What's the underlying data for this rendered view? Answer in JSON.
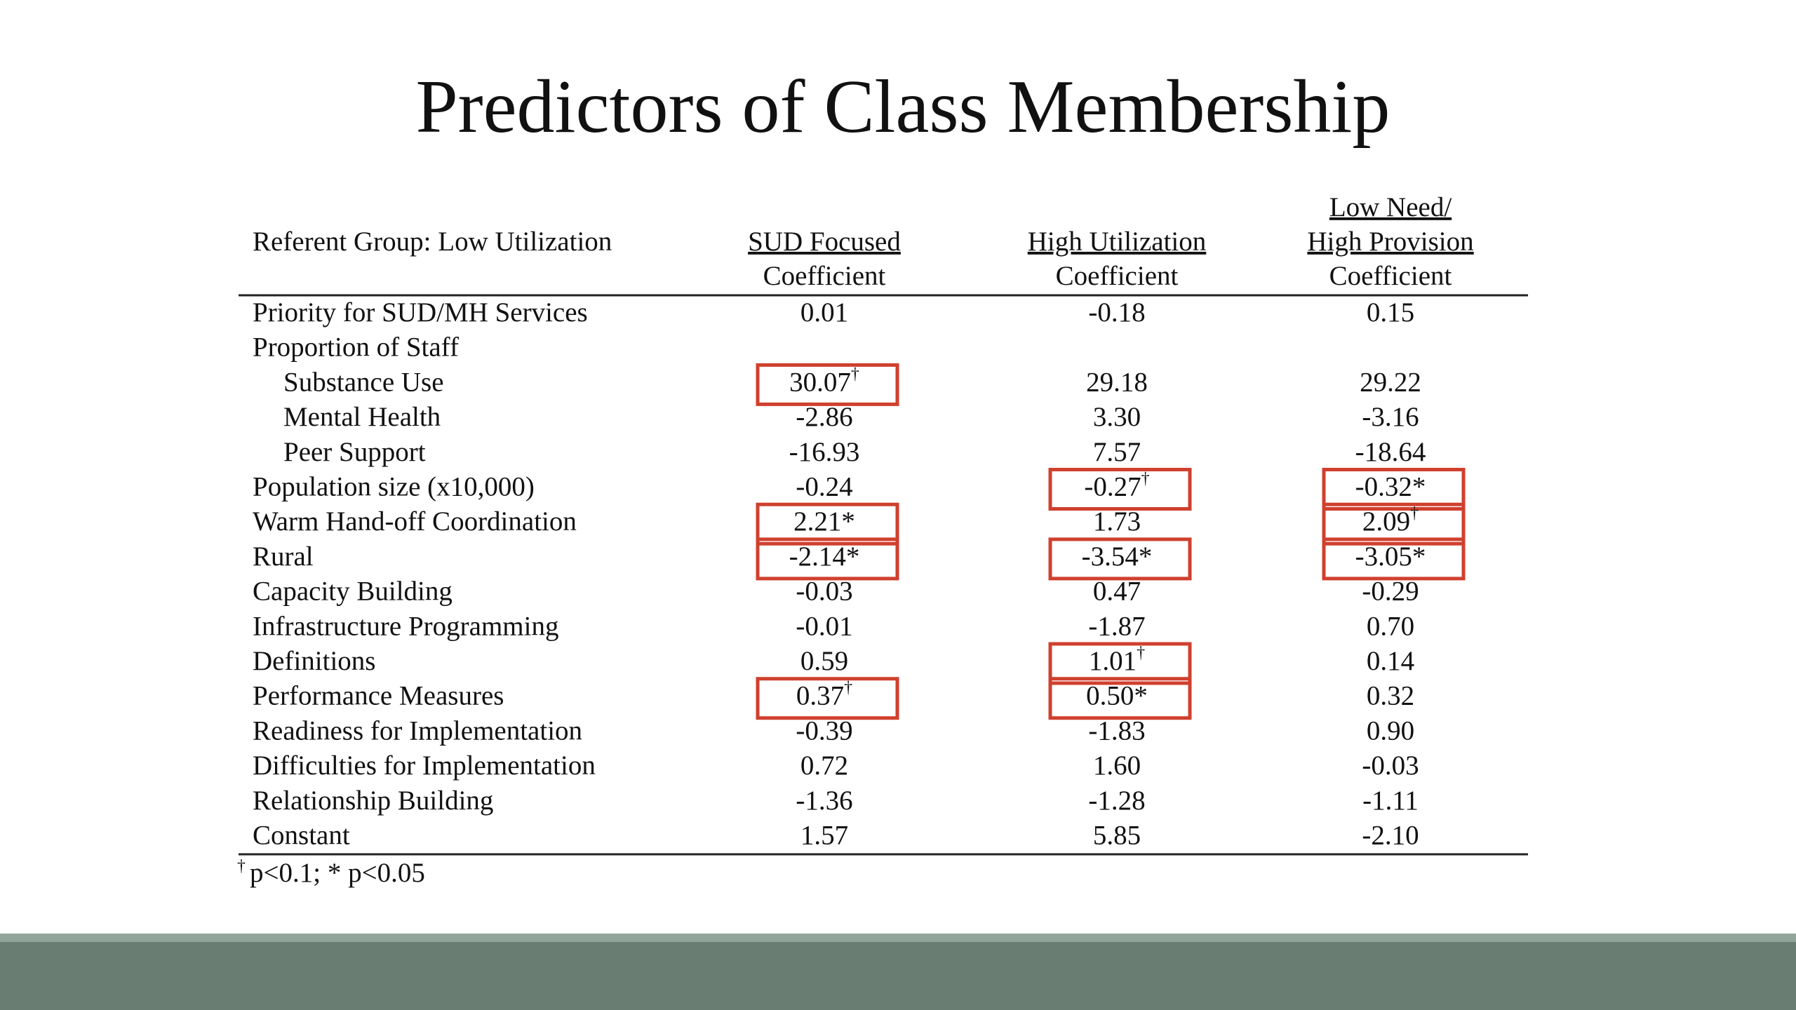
{
  "title": "Predictors of Class Membership",
  "table": {
    "referent": "Referent Group: Low Utilization",
    "columns": [
      {
        "group": [
          "SUD Focused"
        ],
        "sub": "Coefficient"
      },
      {
        "group": [
          "High Utilization"
        ],
        "sub": "Coefficient"
      },
      {
        "group": [
          "Low Need/",
          "High Provision"
        ],
        "sub": "Coefficient"
      }
    ],
    "rows": [
      {
        "label": "Priority for SUD/MH Services",
        "cells": [
          {
            "value": "0.01"
          },
          {
            "value": "-0.18"
          },
          {
            "value": "0.15"
          }
        ]
      },
      {
        "label": "Proportion of Staff",
        "cells": []
      },
      {
        "label": "Substance Use",
        "indent": true,
        "cells": [
          {
            "value": "30.07",
            "sup": "†",
            "boxed": true
          },
          {
            "value": "29.18"
          },
          {
            "value": "29.22"
          }
        ]
      },
      {
        "label": "Mental Health",
        "indent": true,
        "cells": [
          {
            "value": "-2.86"
          },
          {
            "value": "3.30"
          },
          {
            "value": "-3.16"
          }
        ]
      },
      {
        "label": "Peer Support",
        "indent": true,
        "cells": [
          {
            "value": "-16.93"
          },
          {
            "value": "7.57"
          },
          {
            "value": "-18.64"
          }
        ]
      },
      {
        "label": "Population size (x10,000)",
        "cells": [
          {
            "value": "-0.24"
          },
          {
            "value": "-0.27",
            "sup": "†",
            "boxed": true
          },
          {
            "value": "-0.32*",
            "boxed": true
          }
        ]
      },
      {
        "label": "Warm Hand-off Coordination",
        "cells": [
          {
            "value": "2.21*",
            "boxed": true
          },
          {
            "value": "1.73"
          },
          {
            "value": "2.09",
            "sup": "†",
            "boxed": true
          }
        ]
      },
      {
        "label": "Rural",
        "cells": [
          {
            "value": "-2.14*",
            "boxed": true
          },
          {
            "value": "-3.54*",
            "boxed": true
          },
          {
            "value": "-3.05*",
            "boxed": true
          }
        ]
      },
      {
        "label": "Capacity Building",
        "cells": [
          {
            "value": "-0.03"
          },
          {
            "value": "0.47"
          },
          {
            "value": "-0.29"
          }
        ]
      },
      {
        "label": "Infrastructure Programming",
        "cells": [
          {
            "value": "-0.01"
          },
          {
            "value": "-1.87"
          },
          {
            "value": "0.70"
          }
        ]
      },
      {
        "label": "Definitions",
        "cells": [
          {
            "value": "0.59"
          },
          {
            "value": "1.01",
            "sup": "†",
            "boxed": true
          },
          {
            "value": "0.14"
          }
        ]
      },
      {
        "label": "Performance Measures",
        "cells": [
          {
            "value": "0.37",
            "sup": "†",
            "boxed": true
          },
          {
            "value": "0.50*",
            "boxed": true
          },
          {
            "value": "0.32"
          }
        ]
      },
      {
        "label": "Readiness for Implementation",
        "cells": [
          {
            "value": "-0.39"
          },
          {
            "value": "-1.83"
          },
          {
            "value": "0.90"
          }
        ]
      },
      {
        "label": "Difficulties for Implementation",
        "cells": [
          {
            "value": "0.72"
          },
          {
            "value": "1.60"
          },
          {
            "value": "-0.03"
          }
        ]
      },
      {
        "label": "Relationship Building",
        "cells": [
          {
            "value": "-1.36"
          },
          {
            "value": "-1.28"
          },
          {
            "value": "-1.11"
          }
        ]
      },
      {
        "label": "Constant",
        "cells": [
          {
            "value": "1.57"
          },
          {
            "value": "5.85"
          },
          {
            "value": "-2.10"
          }
        ]
      }
    ],
    "footnote": {
      "symbol": "†",
      "text": "p<0.1; * p<0.05"
    }
  }
}
